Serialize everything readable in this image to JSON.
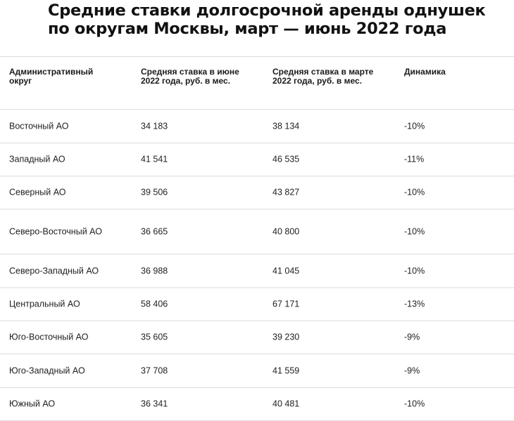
{
  "title": {
    "line1": "Средние ставки долгосрочной аренды однушек",
    "line2": "по округам Москвы, март — июнь 2022 года"
  },
  "chart_data": {
    "type": "table",
    "columns": [
      "Административный округ",
      "Средняя ставка в июне 2022 года, руб. в мес.",
      "Средняя ставка в марте 2022 года, руб. в мес.",
      "Динамика"
    ],
    "rows": [
      [
        "Восточный АО",
        "34 183",
        "38 134",
        "-10%"
      ],
      [
        "Западный АО",
        "41 541",
        "46 535",
        "-11%"
      ],
      [
        "Северный АО",
        "39 506",
        "43 827",
        "-10%"
      ],
      [
        "Северо-Восточный АО",
        "36 665",
        "40 800",
        "-10%"
      ],
      [
        "Северо-Западный АО",
        "36 988",
        "41 045",
        "-10%"
      ],
      [
        "Центральный АО",
        "58 406",
        "67 171",
        "-13%"
      ],
      [
        "Юго-Восточный АО",
        "35 605",
        "39 230",
        "-9%"
      ],
      [
        "Юго-Западный АО",
        "37 708",
        "41 559",
        "-9%"
      ],
      [
        "Южный АО",
        "36 341",
        "40 481",
        "-10%"
      ]
    ]
  }
}
